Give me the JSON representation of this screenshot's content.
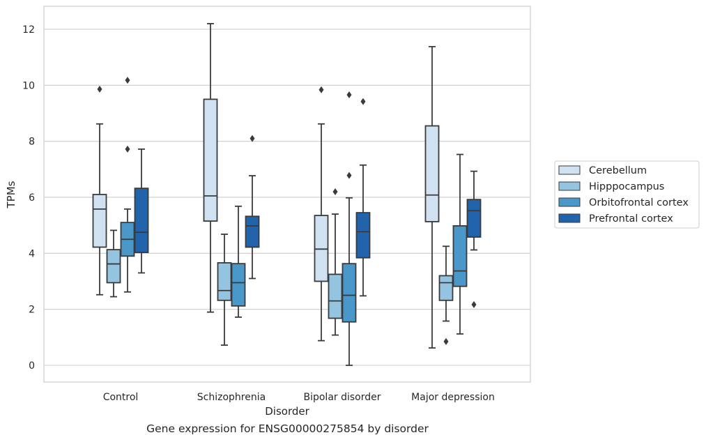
{
  "caption": "Gene expression for ENSG00000275854 by disorder",
  "chart_data": {
    "type": "box",
    "xlabel": "Disorder",
    "ylabel": "TPMs",
    "ylim": [
      -0.6,
      12.8
    ],
    "yticks": [
      0,
      2,
      4,
      6,
      8,
      10,
      12
    ],
    "grid": "horizontal",
    "legend_placement": "right",
    "categories": [
      "Control",
      "Schizophrenia",
      "Bipolar disorder",
      "Major depression"
    ],
    "series": [
      {
        "name": "Cerebellum",
        "color": "#d0e1f2",
        "boxes": [
          {
            "whislo": 2.52,
            "q1": 4.22,
            "med": 5.58,
            "q3": 6.1,
            "whishi": 8.62,
            "fliers": [
              9.86
            ]
          },
          {
            "whislo": 1.9,
            "q1": 5.15,
            "med": 6.05,
            "q3": 9.5,
            "whishi": 12.2,
            "fliers": []
          },
          {
            "whislo": 0.88,
            "q1": 3.0,
            "med": 4.15,
            "q3": 5.35,
            "whishi": 8.62,
            "fliers": [
              9.84
            ]
          },
          {
            "whislo": 0.62,
            "q1": 5.13,
            "med": 6.08,
            "q3": 8.55,
            "whishi": 11.38,
            "fliers": []
          }
        ]
      },
      {
        "name": "Hipppocampus",
        "color": "#94c4df",
        "boxes": [
          {
            "whislo": 2.45,
            "q1": 2.95,
            "med": 3.62,
            "q3": 4.13,
            "whishi": 4.82,
            "fliers": []
          },
          {
            "whislo": 0.72,
            "q1": 2.32,
            "med": 2.67,
            "q3": 3.66,
            "whishi": 4.68,
            "fliers": []
          },
          {
            "whislo": 1.08,
            "q1": 1.68,
            "med": 2.3,
            "q3": 3.25,
            "whishi": 5.4,
            "fliers": [
              6.2
            ]
          },
          {
            "whislo": 1.58,
            "q1": 2.32,
            "med": 2.95,
            "q3": 3.2,
            "whishi": 4.25,
            "fliers": [
              0.85
            ]
          }
        ]
      },
      {
        "name": "Orbitofrontal cortex",
        "color": "#4a98c9",
        "boxes": [
          {
            "whislo": 2.62,
            "q1": 3.9,
            "med": 4.5,
            "q3": 5.1,
            "whishi": 5.58,
            "fliers": [
              7.72,
              10.18
            ]
          },
          {
            "whislo": 1.72,
            "q1": 2.12,
            "med": 2.95,
            "q3": 3.63,
            "whishi": 5.68,
            "fliers": []
          },
          {
            "whislo": 0.0,
            "q1": 1.55,
            "med": 2.5,
            "q3": 3.63,
            "whishi": 5.98,
            "fliers": [
              6.78,
              9.66
            ]
          },
          {
            "whislo": 1.12,
            "q1": 2.82,
            "med": 3.37,
            "q3": 4.98,
            "whishi": 7.53,
            "fliers": []
          }
        ]
      },
      {
        "name": "Prefrontal cortex",
        "color": "#2164ab",
        "boxes": [
          {
            "whislo": 3.3,
            "q1": 4.03,
            "med": 4.75,
            "q3": 6.32,
            "whishi": 7.72,
            "fliers": []
          },
          {
            "whislo": 3.1,
            "q1": 4.22,
            "med": 4.98,
            "q3": 5.32,
            "whishi": 6.77,
            "fliers": [
              8.1
            ]
          },
          {
            "whislo": 2.48,
            "q1": 3.84,
            "med": 4.77,
            "q3": 5.45,
            "whishi": 7.15,
            "fliers": [
              9.42
            ]
          },
          {
            "whislo": 4.12,
            "q1": 4.58,
            "med": 5.52,
            "q3": 5.92,
            "whishi": 6.93,
            "fliers": [
              2.17
            ]
          }
        ]
      }
    ]
  }
}
